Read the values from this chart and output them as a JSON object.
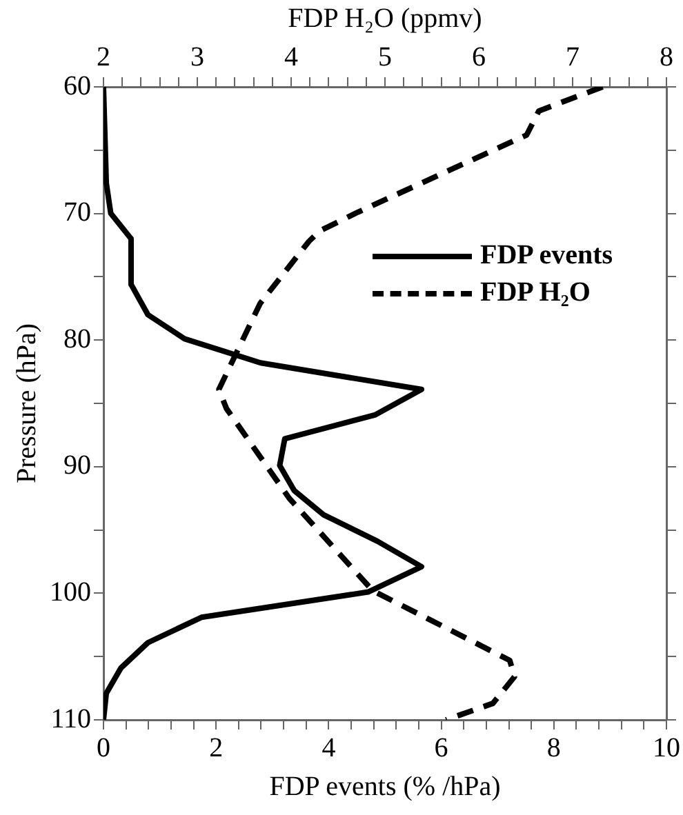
{
  "chart_data": {
    "type": "line",
    "xlabel": "FDP events (% /hPa)",
    "ylabel": "Pressure (hPa)",
    "x2label": "FDP H₂O (ppmv)",
    "xlim": [
      0,
      10
    ],
    "xticks": [
      0,
      {
        "value": 0.4,
        "label": null
      },
      {
        "value": 0.8,
        "label": null
      },
      {
        "value": 1.2,
        "label": null
      },
      {
        "value": 1.6,
        "label": null
      },
      2,
      {
        "value": 2.4,
        "label": null
      },
      {
        "value": 2.8,
        "label": null
      },
      {
        "value": 3.2,
        "label": null
      },
      {
        "value": 3.6,
        "label": null
      },
      4,
      {
        "value": 4.4,
        "label": null
      },
      {
        "value": 4.8,
        "label": null
      },
      {
        "value": 5.2,
        "label": null
      },
      {
        "value": 5.6,
        "label": null
      },
      6,
      {
        "value": 6.4,
        "label": null
      },
      {
        "value": 6.8,
        "label": null
      },
      {
        "value": 7.2,
        "label": null
      },
      {
        "value": 7.6,
        "label": null
      },
      8,
      {
        "value": 8.4,
        "label": null
      },
      {
        "value": 8.8,
        "label": null
      },
      {
        "value": 9.2,
        "label": null
      },
      {
        "value": 9.6,
        "label": null
      },
      10
    ],
    "x2lim": [
      2,
      8
    ],
    "x2ticks": [
      2,
      {
        "value": 2.2,
        "label": null
      },
      {
        "value": 2.4,
        "label": null
      },
      {
        "value": 2.6,
        "label": null
      },
      {
        "value": 2.8,
        "label": null
      },
      3,
      {
        "value": 3.2,
        "label": null
      },
      {
        "value": 3.4,
        "label": null
      },
      {
        "value": 3.6,
        "label": null
      },
      {
        "value": 3.8,
        "label": null
      },
      4,
      {
        "value": 4.2,
        "label": null
      },
      {
        "value": 4.4,
        "label": null
      },
      {
        "value": 4.6,
        "label": null
      },
      {
        "value": 4.8,
        "label": null
      },
      5,
      {
        "value": 5.2,
        "label": null
      },
      {
        "value": 5.4,
        "label": null
      },
      {
        "value": 5.6,
        "label": null
      },
      {
        "value": 5.8,
        "label": null
      },
      6,
      {
        "value": 6.2,
        "label": null
      },
      {
        "value": 6.4,
        "label": null
      },
      {
        "value": 6.6,
        "label": null
      },
      {
        "value": 6.8,
        "label": null
      },
      7,
      {
        "value": 7.2,
        "label": null
      },
      {
        "value": 7.4,
        "label": null
      },
      {
        "value": 7.6,
        "label": null
      },
      {
        "value": 7.8,
        "label": null
      },
      8
    ],
    "ylim": [
      110,
      60
    ],
    "yticks": [
      60,
      {
        "value": 65,
        "label": null
      },
      70,
      {
        "value": 75,
        "label": null
      },
      80,
      {
        "value": 85,
        "label": null
      },
      90,
      {
        "value": 95,
        "label": null
      },
      100,
      {
        "value": 105,
        "label": null
      },
      110
    ],
    "grid": false,
    "legend": "top right",
    "marker": "none",
    "series": [
      {
        "name": "FDP events",
        "color": "#000000",
        "line_style": "solid",
        "x": [
          0,
          0.05,
          0.13,
          0.49,
          0.49,
          0.79,
          1.44,
          2.79,
          5.65,
          4.83,
          3.22,
          3.13,
          3.39,
          3.91,
          4.87,
          5.65,
          4.7,
          1.74,
          0.79,
          0.31,
          0.05,
          0
        ],
        "values": [
          60,
          67.6,
          70,
          72,
          75.6,
          78,
          79.9,
          81.8,
          83.9,
          85.9,
          87.8,
          89.9,
          91.9,
          93.8,
          95.9,
          97.9,
          99.9,
          101.9,
          103.9,
          105.9,
          107.9,
          110
        ]
      },
      {
        "name": "FDP H₂O",
        "color": "#000000",
        "line_style": "dashed",
        "axis": "x2",
        "x": [
          7.32,
          6.64,
          6.51,
          4.71,
          4.3,
          4.19,
          3.67,
          3.23,
          3.31,
          3.98,
          4.87,
          6.33,
          6.38,
          6.15,
          5.65
        ],
        "values": [
          60,
          61.9,
          63.8,
          69.9,
          71.4,
          72.2,
          77.1,
          83.9,
          85.4,
          92.5,
          99.8,
          105.3,
          106.6,
          108.7,
          110
        ]
      }
    ]
  }
}
